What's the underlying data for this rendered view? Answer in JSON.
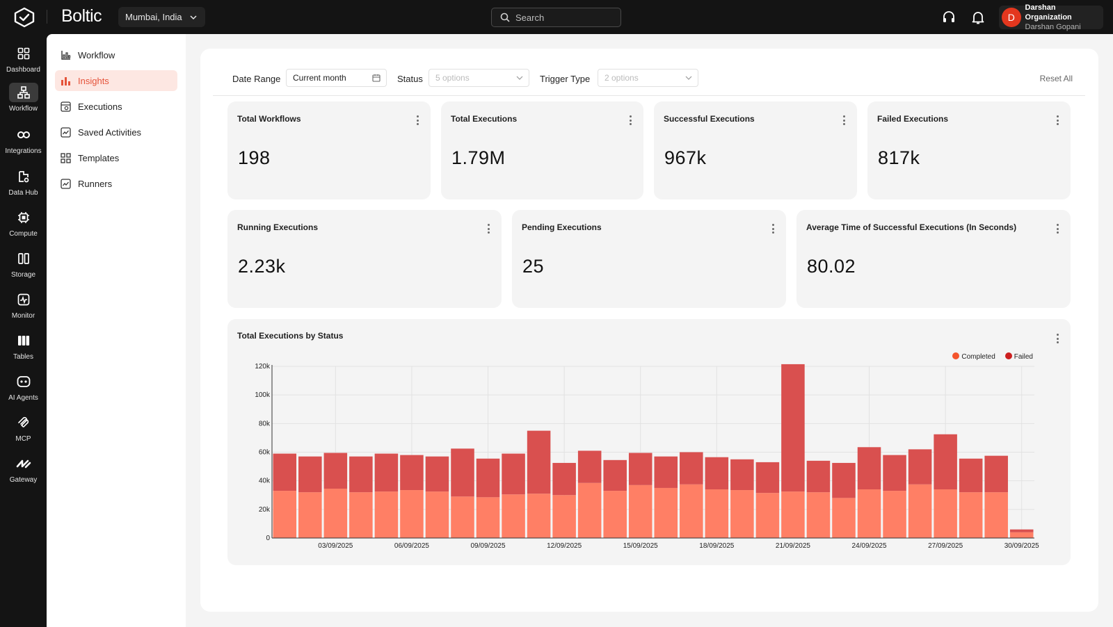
{
  "app": {
    "brand": "Boltic",
    "region": "Mumbai, India",
    "search_placeholder": "Search",
    "user": {
      "initial": "D",
      "org": "Darshan Organization",
      "name": "Darshan Gopani"
    }
  },
  "rail": [
    {
      "label": "Dashboard",
      "icon": "dashboard-icon"
    },
    {
      "label": "Workflow",
      "icon": "workflow-icon"
    },
    {
      "label": "Integrations",
      "icon": "integrations-icon"
    },
    {
      "label": "Data Hub",
      "icon": "data-hub-icon"
    },
    {
      "label": "Compute",
      "icon": "compute-icon"
    },
    {
      "label": "Storage",
      "icon": "storage-icon"
    },
    {
      "label": "Monitor",
      "icon": "monitor-icon"
    },
    {
      "label": "Tables",
      "icon": "tables-icon"
    },
    {
      "label": "AI Agents",
      "icon": "ai-agents-icon"
    },
    {
      "label": "MCP",
      "icon": "mcp-icon"
    },
    {
      "label": "Gateway",
      "icon": "gateway-icon"
    }
  ],
  "subnav": [
    {
      "label": "Workflow"
    },
    {
      "label": "Insights"
    },
    {
      "label": "Executions"
    },
    {
      "label": "Saved Activities"
    },
    {
      "label": "Templates"
    },
    {
      "label": "Runners"
    }
  ],
  "filters": {
    "date_range_label": "Date Range",
    "date_range_value": "Current month",
    "status_label": "Status",
    "status_placeholder": "5 options",
    "trigger_label": "Trigger Type",
    "trigger_placeholder": "2 options",
    "reset": "Reset All"
  },
  "cards_row1": [
    {
      "title": "Total Workflows",
      "value": "198"
    },
    {
      "title": "Total Executions",
      "value": "1.79M"
    },
    {
      "title": "Successful Executions",
      "value": "967k"
    },
    {
      "title": "Failed Executions",
      "value": "817k"
    }
  ],
  "cards_row2": [
    {
      "title": "Running Executions",
      "value": "2.23k"
    },
    {
      "title": "Pending Executions",
      "value": "25"
    },
    {
      "title": "Average Time of Successful Executions (In Seconds)",
      "value": "80.02"
    }
  ],
  "colors": {
    "accent": "#e5533a",
    "completed": "#ff7f65",
    "failed": "#d9504f"
  },
  "chart_data": {
    "type": "bar",
    "stacked": true,
    "title": "Total Executions by Status",
    "ylim": [
      0,
      120000
    ],
    "yticks": [
      "0",
      "20k",
      "40k",
      "60k",
      "80k",
      "100k",
      "120k"
    ],
    "yticks_values": [
      0,
      20000,
      40000,
      60000,
      80000,
      100000,
      120000
    ],
    "x": [
      "01/09/2025",
      "02/09/2025",
      "03/09/2025",
      "04/09/2025",
      "05/09/2025",
      "06/09/2025",
      "07/09/2025",
      "08/09/2025",
      "09/09/2025",
      "10/09/2025",
      "11/09/2025",
      "12/09/2025",
      "13/09/2025",
      "14/09/2025",
      "15/09/2025",
      "16/09/2025",
      "17/09/2025",
      "18/09/2025",
      "19/09/2025",
      "20/09/2025",
      "21/09/2025",
      "22/09/2025",
      "23/09/2025",
      "24/09/2025",
      "25/09/2025",
      "26/09/2025",
      "27/09/2025",
      "28/09/2025",
      "29/09/2025",
      "30/09/2025"
    ],
    "xtick_labels": [
      "03/09/2025",
      "06/09/2025",
      "09/09/2025",
      "12/09/2025",
      "15/09/2025",
      "18/09/2025",
      "21/09/2025",
      "24/09/2025",
      "27/09/2025",
      "30/09/2025"
    ],
    "series": [
      {
        "name": "Completed",
        "color": "#ff7f65",
        "values": [
          33000,
          32000,
          34500,
          32000,
          32500,
          33500,
          32500,
          29000,
          28500,
          30500,
          31000,
          30000,
          38500,
          33000,
          37000,
          35000,
          37500,
          34000,
          33500,
          31500,
          32500,
          32000,
          28000,
          34000,
          33000,
          37500,
          34000,
          32000,
          32000,
          4000
        ]
      },
      {
        "name": "Failed",
        "color": "#d9504f",
        "values": [
          26000,
          25000,
          25000,
          25000,
          26500,
          24500,
          24500,
          33500,
          27000,
          28500,
          44000,
          22500,
          22500,
          21500,
          22500,
          22000,
          22500,
          22500,
          21500,
          21500,
          89000,
          22000,
          24500,
          29500,
          25000,
          24500,
          38500,
          23500,
          25500,
          2000
        ]
      }
    ],
    "legend": "top-right",
    "grid": true
  }
}
